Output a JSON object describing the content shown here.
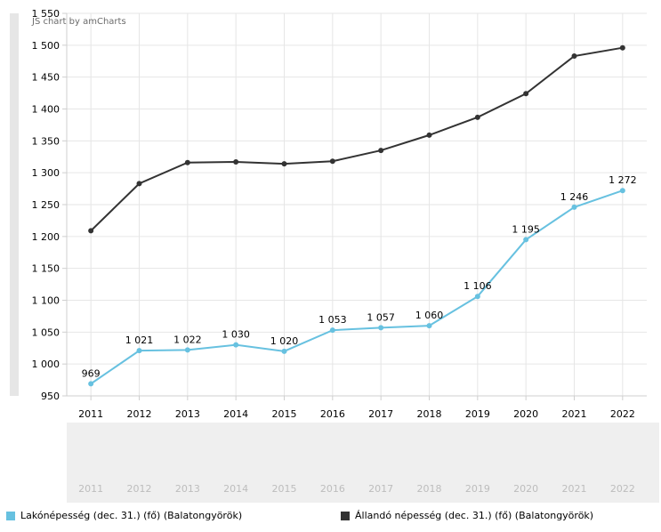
{
  "credit": "JS chart by amCharts",
  "chart_data": {
    "type": "line",
    "categories": [
      "2011",
      "2012",
      "2013",
      "2014",
      "2015",
      "2016",
      "2017",
      "2018",
      "2019",
      "2020",
      "2021",
      "2022"
    ],
    "ylim": [
      950,
      1550
    ],
    "yticks": [
      950,
      1000,
      1050,
      1100,
      1150,
      1200,
      1250,
      1300,
      1350,
      1400,
      1450,
      1500,
      1550
    ],
    "grid": true,
    "legend_position": "bottom",
    "series": [
      {
        "name": "Lakónépesség (dec. 31.) (fő) (Balatongyörök)",
        "color": "#67c1e0",
        "values": [
          969,
          1021,
          1022,
          1030,
          1020,
          1053,
          1057,
          1060,
          1106,
          1195,
          1246,
          1272
        ],
        "labels": [
          "969",
          "1 021",
          "1 022",
          "1 030",
          "1 020",
          "1 053",
          "1 057",
          "1 060",
          "1 106",
          "1 195",
          "1 246",
          "1 272"
        ]
      },
      {
        "name": "Állandó népesség (dec. 31.) (fő) (Balatongyörök)",
        "color": "#333333",
        "values": [
          1209,
          1283,
          1316,
          1317,
          1314,
          1318,
          1335,
          1359,
          1387,
          1424,
          1483,
          1496
        ],
        "labels": []
      }
    ]
  }
}
